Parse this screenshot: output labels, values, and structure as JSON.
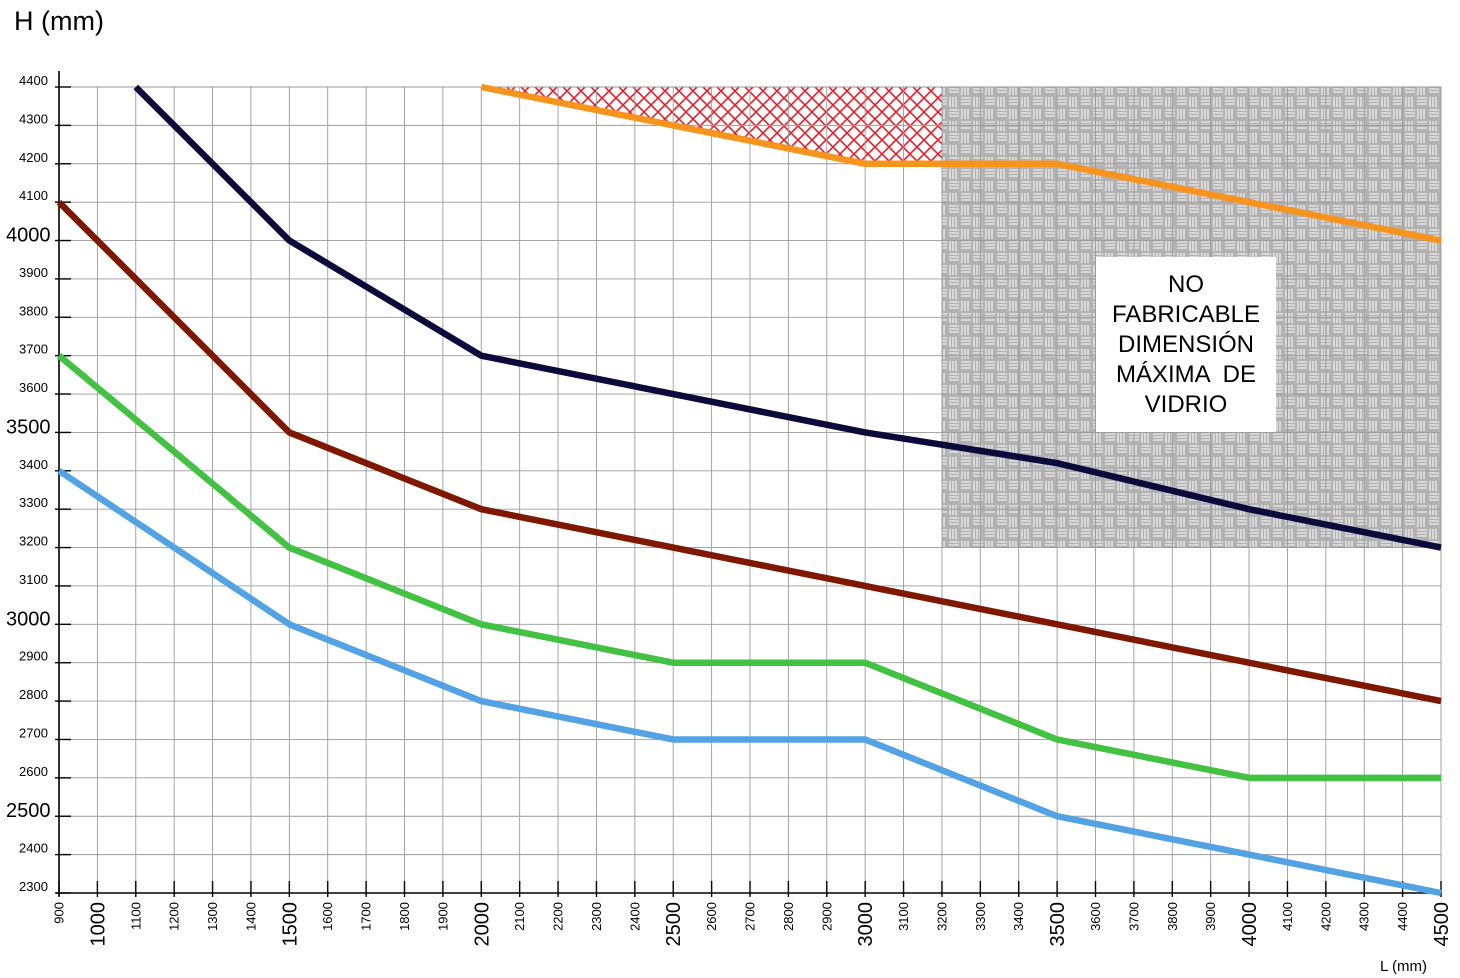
{
  "chart_data": {
    "type": "line",
    "ylabel": "H (mm)",
    "xlabel": "L (mm)",
    "xlim": [
      900,
      4500
    ],
    "ylim": [
      2300,
      4400
    ],
    "x_ticks": [
      900,
      1000,
      1100,
      1200,
      1300,
      1400,
      1500,
      1600,
      1700,
      1800,
      1900,
      2000,
      2100,
      2200,
      2300,
      2400,
      2500,
      2600,
      2700,
      2800,
      2900,
      3000,
      3100,
      3200,
      3300,
      3400,
      3500,
      3600,
      3700,
      3800,
      3900,
      4000,
      4100,
      4200,
      4300,
      4400,
      4500
    ],
    "x_major_ticks": [
      1000,
      1500,
      2000,
      2500,
      3000,
      3500,
      4000,
      4500
    ],
    "y_ticks": [
      2300,
      2400,
      2500,
      2600,
      2700,
      2800,
      2900,
      3000,
      3100,
      3200,
      3300,
      3400,
      3500,
      3600,
      3700,
      3800,
      3900,
      4000,
      4100,
      4200,
      4300,
      4400
    ],
    "y_major_ticks": [
      2500,
      3000,
      3500,
      4000
    ],
    "grid": true,
    "series": [
      {
        "color": "#f7941d",
        "points": [
          [
            2000,
            4400
          ],
          [
            2500,
            4300
          ],
          [
            3000,
            4200
          ],
          [
            3500,
            4200
          ],
          [
            4000,
            4100
          ],
          [
            4500,
            4000
          ]
        ]
      },
      {
        "color": "#0b0b3b",
        "points": [
          [
            1100,
            4400
          ],
          [
            1500,
            4000
          ],
          [
            2000,
            3700
          ],
          [
            2500,
            3600
          ],
          [
            3000,
            3500
          ],
          [
            3500,
            3420
          ],
          [
            4000,
            3300
          ],
          [
            4500,
            3200
          ]
        ]
      },
      {
        "color": "#7f1800",
        "points": [
          [
            900,
            4100
          ],
          [
            1500,
            3500
          ],
          [
            2000,
            3300
          ],
          [
            2500,
            3200
          ],
          [
            3000,
            3100
          ],
          [
            3500,
            3000
          ],
          [
            4000,
            2900
          ],
          [
            4500,
            2800
          ]
        ]
      },
      {
        "color": "#42c142",
        "points": [
          [
            900,
            3700
          ],
          [
            1500,
            3200
          ],
          [
            2000,
            3000
          ],
          [
            2500,
            2900
          ],
          [
            3000,
            2900
          ],
          [
            3500,
            2700
          ],
          [
            4000,
            2600
          ],
          [
            4500,
            2600
          ]
        ]
      },
      {
        "color": "#53a3e4",
        "points": [
          [
            900,
            3400
          ],
          [
            1500,
            3000
          ],
          [
            2000,
            2800
          ],
          [
            2500,
            2700
          ],
          [
            3000,
            2700
          ],
          [
            3500,
            2500
          ],
          [
            4000,
            2400
          ],
          [
            4500,
            2300
          ]
        ]
      }
    ],
    "annotation": {
      "lines": [
        "NO",
        "FABRICABLE",
        "DIMENSIÓN",
        "MÁXIMA  DE",
        "VIDRIO"
      ],
      "region_x": [
        3200,
        4500
      ],
      "region_y": [
        3200,
        4400
      ]
    },
    "colors": {
      "grid": "#9a9a9a",
      "hatch_red": "#e0202a",
      "hatch_gray": "#a9a9a9"
    }
  }
}
